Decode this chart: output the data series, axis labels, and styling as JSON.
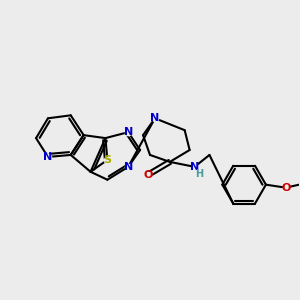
{
  "bg_color": "#ececec",
  "atom_colors": {
    "C": "#000000",
    "N": "#0000cc",
    "O": "#cc0000",
    "S": "#aaaa00",
    "H": "#4a9a9a"
  },
  "figsize": [
    3.0,
    3.0
  ],
  "dpi": 100
}
